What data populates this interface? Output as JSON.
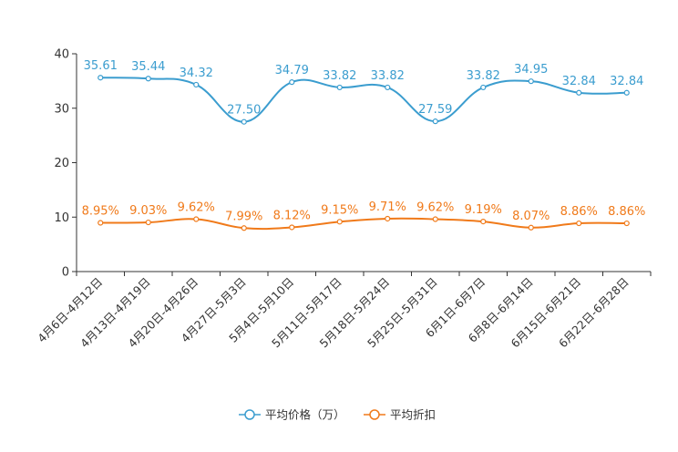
{
  "chart_data": {
    "type": "line",
    "title": "",
    "xlabel": "",
    "ylabel": "",
    "ylim": [
      0,
      40
    ],
    "yticks": [
      0,
      10,
      20,
      30,
      40
    ],
    "categories": [
      "4月6日-4月12日",
      "4月13日-4月19日",
      "4月20日-4月26日",
      "4月27日-5月3日",
      "5月4日-5月10日",
      "5月11日-5月17日",
      "5月18日-5月24日",
      "5月25日-5月31日",
      "6月1日-6月7日",
      "6月8日-6月14日",
      "6月15日-6月21日",
      "6月22日-6月28日"
    ],
    "series": [
      {
        "name": "平均价格（万）",
        "color": "#3b9dcf",
        "values": [
          35.61,
          35.44,
          34.32,
          27.5,
          34.79,
          33.82,
          33.82,
          27.59,
          33.82,
          34.95,
          32.84,
          32.84
        ],
        "labels": [
          "35.61",
          "35.44",
          "34.32",
          "27.50",
          "34.79",
          "33.82",
          "33.82",
          "27.59",
          "33.82",
          "34.95",
          "32.84",
          "32.84"
        ]
      },
      {
        "name": "平均折扣",
        "color": "#f07a1a",
        "values": [
          8.95,
          9.03,
          9.62,
          7.99,
          8.12,
          9.15,
          9.71,
          9.62,
          9.19,
          8.07,
          8.86,
          8.86
        ],
        "labels": [
          "8.95%",
          "9.03%",
          "9.62%",
          "7.99%",
          "8.12%",
          "9.15%",
          "9.71%",
          "9.62%",
          "9.19%",
          "8.07%",
          "8.86%",
          "8.86%"
        ]
      }
    ],
    "legend_position": "bottom-center"
  }
}
